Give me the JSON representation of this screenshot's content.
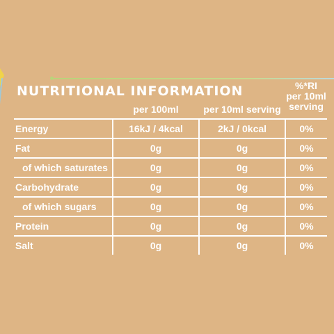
{
  "title": "NUTRITIONAL INFORMATION",
  "columns": {
    "per_100": "per 100ml",
    "per_serving": "per 10ml serving",
    "ri": [
      "%*RI",
      "per 10ml",
      "serving"
    ]
  },
  "rows": [
    {
      "label": "Energy",
      "per_100": "16kJ / 4kcal",
      "per_serving": "2kJ / 0kcal",
      "ri": "0%",
      "sub": false
    },
    {
      "label": "Fat",
      "per_100": "0g",
      "per_serving": "0g",
      "ri": "0%",
      "sub": false
    },
    {
      "label": "of which saturates",
      "per_100": "0g",
      "per_serving": "0g",
      "ri": "0%",
      "sub": true
    },
    {
      "label": "Carbohydrate",
      "per_100": "0g",
      "per_serving": "0g",
      "ri": "0%",
      "sub": false
    },
    {
      "label": "of which sugars",
      "per_100": "0g",
      "per_serving": "0g",
      "ri": "0%",
      "sub": true
    },
    {
      "label": "Protein",
      "per_100": "0g",
      "per_serving": "0g",
      "ri": "0%",
      "sub": false
    },
    {
      "label": "Salt",
      "per_100": "0g",
      "per_serving": "0g",
      "ri": "0%",
      "sub": false
    }
  ],
  "colors": {
    "background": "#deb585",
    "text": "#ffffff",
    "accent_green": "#b9d47a",
    "accent_yellow": "#f0d34a",
    "accent_blue": "#9fc9d8"
  }
}
